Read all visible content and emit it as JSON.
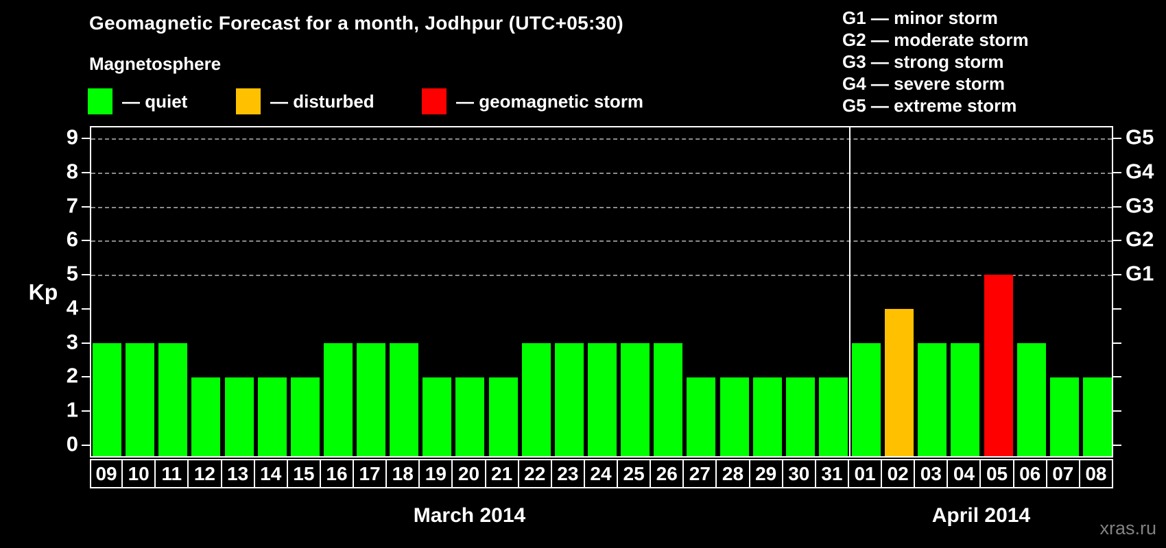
{
  "title": "Geomagnetic Forecast for a month, Jodhpur (UTC+05:30)",
  "legend": {
    "title": "Magnetosphere",
    "items": [
      {
        "key": "quiet",
        "label": "— quiet",
        "color": "#00FF00"
      },
      {
        "key": "disturbed",
        "label": "— disturbed",
        "color": "#FFC000"
      },
      {
        "key": "storm",
        "label": "— geomagnetic storm",
        "color": "#FF0000"
      }
    ]
  },
  "storm_scale": [
    "G1 — minor storm",
    "G2 — moderate storm",
    "G3 — strong storm",
    "G4 — severe storm",
    "G5 — extreme storm"
  ],
  "watermark": "xras.ru",
  "chart_data": {
    "type": "bar",
    "ylabel": "Kp",
    "ylim": [
      -0.36,
      9.36
    ],
    "yticks": [
      0,
      1,
      2,
      3,
      4,
      5,
      6,
      7,
      8,
      9
    ],
    "gridlines_at": [
      5,
      6,
      7,
      8,
      9
    ],
    "grid_color": "#8c8c8c",
    "right_axis": [
      {
        "value": 5,
        "label": "G1"
      },
      {
        "value": 6,
        "label": "G2"
      },
      {
        "value": 7,
        "label": "G3"
      },
      {
        "value": 8,
        "label": "G4"
      },
      {
        "value": 9,
        "label": "G5"
      }
    ],
    "status_colors": {
      "quiet": "#00FF00",
      "disturbed": "#FFC000",
      "storm": "#FF0000"
    },
    "months": [
      {
        "label": "March 2014",
        "days": 23
      },
      {
        "label": "April 2014",
        "days": 8
      }
    ],
    "bars": [
      {
        "month": "March 2014",
        "day": "09",
        "kp": 3,
        "status": "quiet"
      },
      {
        "month": "March 2014",
        "day": "10",
        "kp": 3,
        "status": "quiet"
      },
      {
        "month": "March 2014",
        "day": "11",
        "kp": 3,
        "status": "quiet"
      },
      {
        "month": "March 2014",
        "day": "12",
        "kp": 2,
        "status": "quiet"
      },
      {
        "month": "March 2014",
        "day": "13",
        "kp": 2,
        "status": "quiet"
      },
      {
        "month": "March 2014",
        "day": "14",
        "kp": 2,
        "status": "quiet"
      },
      {
        "month": "March 2014",
        "day": "15",
        "kp": 2,
        "status": "quiet"
      },
      {
        "month": "March 2014",
        "day": "16",
        "kp": 3,
        "status": "quiet"
      },
      {
        "month": "March 2014",
        "day": "17",
        "kp": 3,
        "status": "quiet"
      },
      {
        "month": "March 2014",
        "day": "18",
        "kp": 3,
        "status": "quiet"
      },
      {
        "month": "March 2014",
        "day": "19",
        "kp": 2,
        "status": "quiet"
      },
      {
        "month": "March 2014",
        "day": "20",
        "kp": 2,
        "status": "quiet"
      },
      {
        "month": "March 2014",
        "day": "21",
        "kp": 2,
        "status": "quiet"
      },
      {
        "month": "March 2014",
        "day": "22",
        "kp": 3,
        "status": "quiet"
      },
      {
        "month": "March 2014",
        "day": "23",
        "kp": 3,
        "status": "quiet"
      },
      {
        "month": "March 2014",
        "day": "24",
        "kp": 3,
        "status": "quiet"
      },
      {
        "month": "March 2014",
        "day": "25",
        "kp": 3,
        "status": "quiet"
      },
      {
        "month": "March 2014",
        "day": "26",
        "kp": 3,
        "status": "quiet"
      },
      {
        "month": "March 2014",
        "day": "27",
        "kp": 2,
        "status": "quiet"
      },
      {
        "month": "March 2014",
        "day": "28",
        "kp": 2,
        "status": "quiet"
      },
      {
        "month": "March 2014",
        "day": "29",
        "kp": 2,
        "status": "quiet"
      },
      {
        "month": "March 2014",
        "day": "30",
        "kp": 2,
        "status": "quiet"
      },
      {
        "month": "March 2014",
        "day": "31",
        "kp": 2,
        "status": "quiet"
      },
      {
        "month": "April 2014",
        "day": "01",
        "kp": 3,
        "status": "quiet"
      },
      {
        "month": "April 2014",
        "day": "02",
        "kp": 4,
        "status": "disturbed"
      },
      {
        "month": "April 2014",
        "day": "03",
        "kp": 3,
        "status": "quiet"
      },
      {
        "month": "April 2014",
        "day": "04",
        "kp": 3,
        "status": "quiet"
      },
      {
        "month": "April 2014",
        "day": "05",
        "kp": 5,
        "status": "storm"
      },
      {
        "month": "April 2014",
        "day": "06",
        "kp": 3,
        "status": "quiet"
      },
      {
        "month": "April 2014",
        "day": "07",
        "kp": 2,
        "status": "quiet"
      },
      {
        "month": "April 2014",
        "day": "08",
        "kp": 2,
        "status": "quiet"
      }
    ]
  }
}
